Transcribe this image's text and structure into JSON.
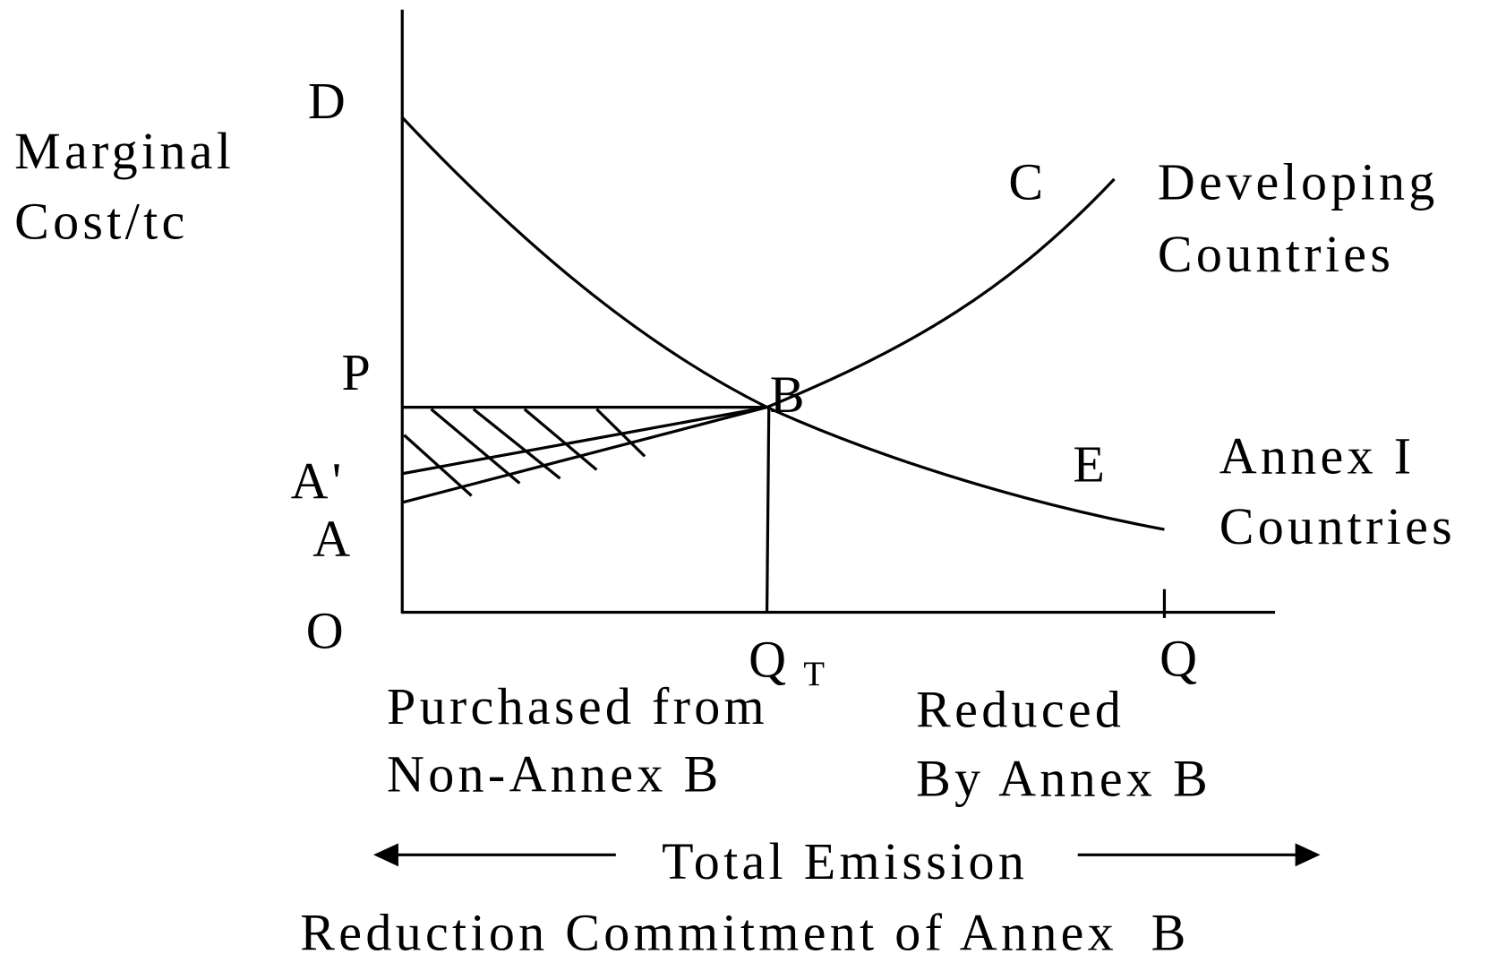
{
  "axis_title": [
    "Marginal",
    "Cost/tc"
  ],
  "points": {
    "D": "D",
    "P": "P",
    "B": "B",
    "A_prime": "A'",
    "A": "A",
    "O": "O",
    "C": "C",
    "E": "E",
    "Q": "Q"
  },
  "q_t": {
    "main": "Q",
    "sub": "T"
  },
  "curves": {
    "developing": [
      "Developing",
      "Countries"
    ],
    "annex_i": [
      "Annex I",
      "Countries"
    ]
  },
  "regions": {
    "purchased": [
      "Purchased from",
      "Non-Annex B"
    ],
    "reduced": [
      "Reduced",
      "By Annex B"
    ]
  },
  "bottom": [
    "Total Emission",
    "Reduction Commitment of Annex  B"
  ]
}
